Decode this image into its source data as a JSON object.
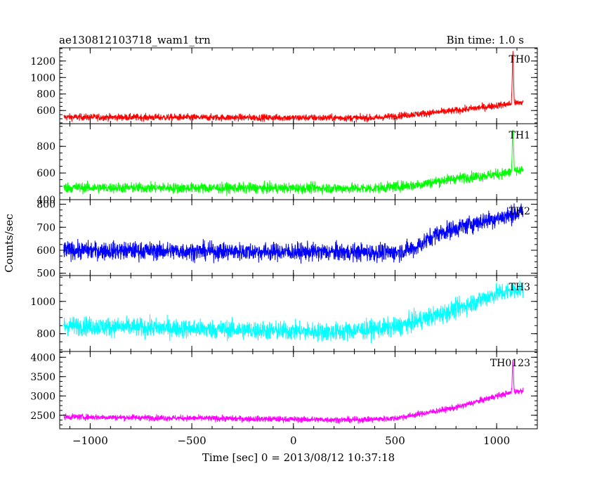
{
  "header": {
    "left_title": "ae130812103718_wam1_trn",
    "right_title": "Bin time: 1.0 s"
  },
  "chart_data": {
    "type": "line",
    "ylabel": "Counts/sec",
    "xlabel": "Time [sec] 0 = 2013/08/12 10:37:18",
    "xlim": [
      -1150,
      1200
    ],
    "x_ticks": [
      -1000,
      -500,
      0,
      500,
      1000
    ],
    "x_tick_labels": [
      "−1000",
      "−500",
      "0",
      "500",
      "1000"
    ],
    "x_range": [
      -1130,
      1130
    ],
    "grid": false,
    "panels": [
      {
        "name": "TH0",
        "color": "#ff0000",
        "ylim": [
          440,
          1360
        ],
        "y_ticks": [
          600,
          800,
          1000,
          1200
        ],
        "baseline": [
          [
            -1130,
            520
          ],
          [
            400,
            510
          ],
          [
            600,
            555
          ],
          [
            800,
            600
          ],
          [
            1000,
            660
          ],
          [
            1130,
            700
          ]
        ],
        "noise": 30,
        "spike": {
          "x": 1080,
          "peak": 1300
        }
      },
      {
        "name": "TH1",
        "color": "#00ff00",
        "ylim": [
          400,
          970
        ],
        "y_ticks": [
          400,
          600,
          800
        ],
        "baseline": [
          [
            -1130,
            490
          ],
          [
            400,
            485
          ],
          [
            600,
            510
          ],
          [
            800,
            560
          ],
          [
            1000,
            590
          ],
          [
            1130,
            620
          ]
        ],
        "noise": 28,
        "spike": {
          "x": 1080,
          "peak": 930
        }
      },
      {
        "name": "TH2",
        "color": "#0000ff",
        "ylim": [
          490,
          820
        ],
        "y_ticks": [
          500,
          600,
          700,
          800
        ],
        "baseline": [
          [
            -1130,
            600
          ],
          [
            500,
            590
          ],
          [
            600,
            610
          ],
          [
            700,
            670
          ],
          [
            900,
            720
          ],
          [
            1130,
            765
          ]
        ],
        "noise": 28,
        "spike": null
      },
      {
        "name": "TH3",
        "color": "#00ffff",
        "ylim": [
          690,
          1160
        ],
        "y_ticks": [
          800,
          1000
        ],
        "baseline": [
          [
            -1130,
            850
          ],
          [
            200,
            810
          ],
          [
            500,
            840
          ],
          [
            800,
            950
          ],
          [
            1000,
            1050
          ],
          [
            1130,
            1080
          ]
        ],
        "noise": 42,
        "spike": null
      },
      {
        "name": "TH0123",
        "color": "#ff00ff",
        "ylim": [
          2150,
          4150
        ],
        "y_ticks": [
          2500,
          3000,
          3500,
          4000
        ],
        "baseline": [
          [
            -1130,
            2460
          ],
          [
            300,
            2380
          ],
          [
            500,
            2420
          ],
          [
            800,
            2700
          ],
          [
            1000,
            3000
          ],
          [
            1130,
            3150
          ]
        ],
        "noise": 55,
        "spike": {
          "x": 1080,
          "peak": 3900
        }
      }
    ]
  }
}
